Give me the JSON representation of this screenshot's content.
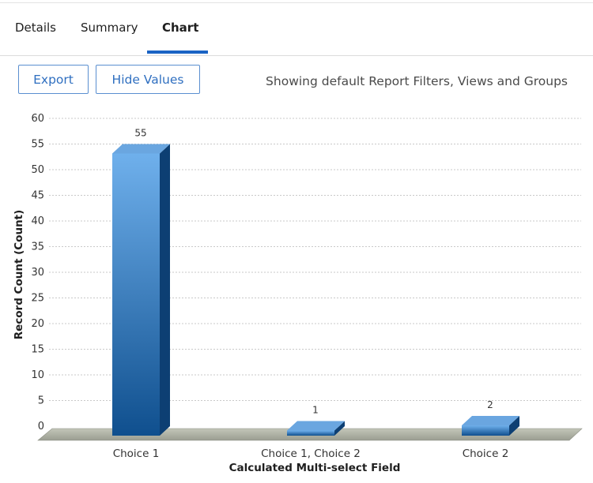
{
  "tabs": [
    {
      "label": "Details"
    },
    {
      "label": "Summary"
    },
    {
      "label": "Chart"
    }
  ],
  "active_tab": "Chart",
  "toolbar": {
    "export_label": "Export",
    "hide_values_label": "Hide Values",
    "filters_note": "Showing default Report Filters, Views and Groups"
  },
  "colors": {
    "accent": "#1a63c4",
    "bar_top": "#6fb0ec",
    "bar_bottom": "#0f4f8e",
    "floor": "#a8ab9e"
  },
  "chart_data": {
    "type": "bar",
    "title": "",
    "xlabel": "Calculated Multi-select Field",
    "ylabel": "Record Count (Count)",
    "categories": [
      "Choice 1",
      "Choice 1, Choice 2",
      "Choice 2"
    ],
    "values": [
      55,
      1,
      2
    ],
    "data_labels": [
      "55",
      "1",
      "2"
    ],
    "ylim": [
      0,
      60
    ],
    "yticks": [
      0,
      5,
      10,
      15,
      20,
      25,
      30,
      35,
      40,
      45,
      50,
      55,
      60
    ],
    "grid": true,
    "style": "3d-column"
  }
}
